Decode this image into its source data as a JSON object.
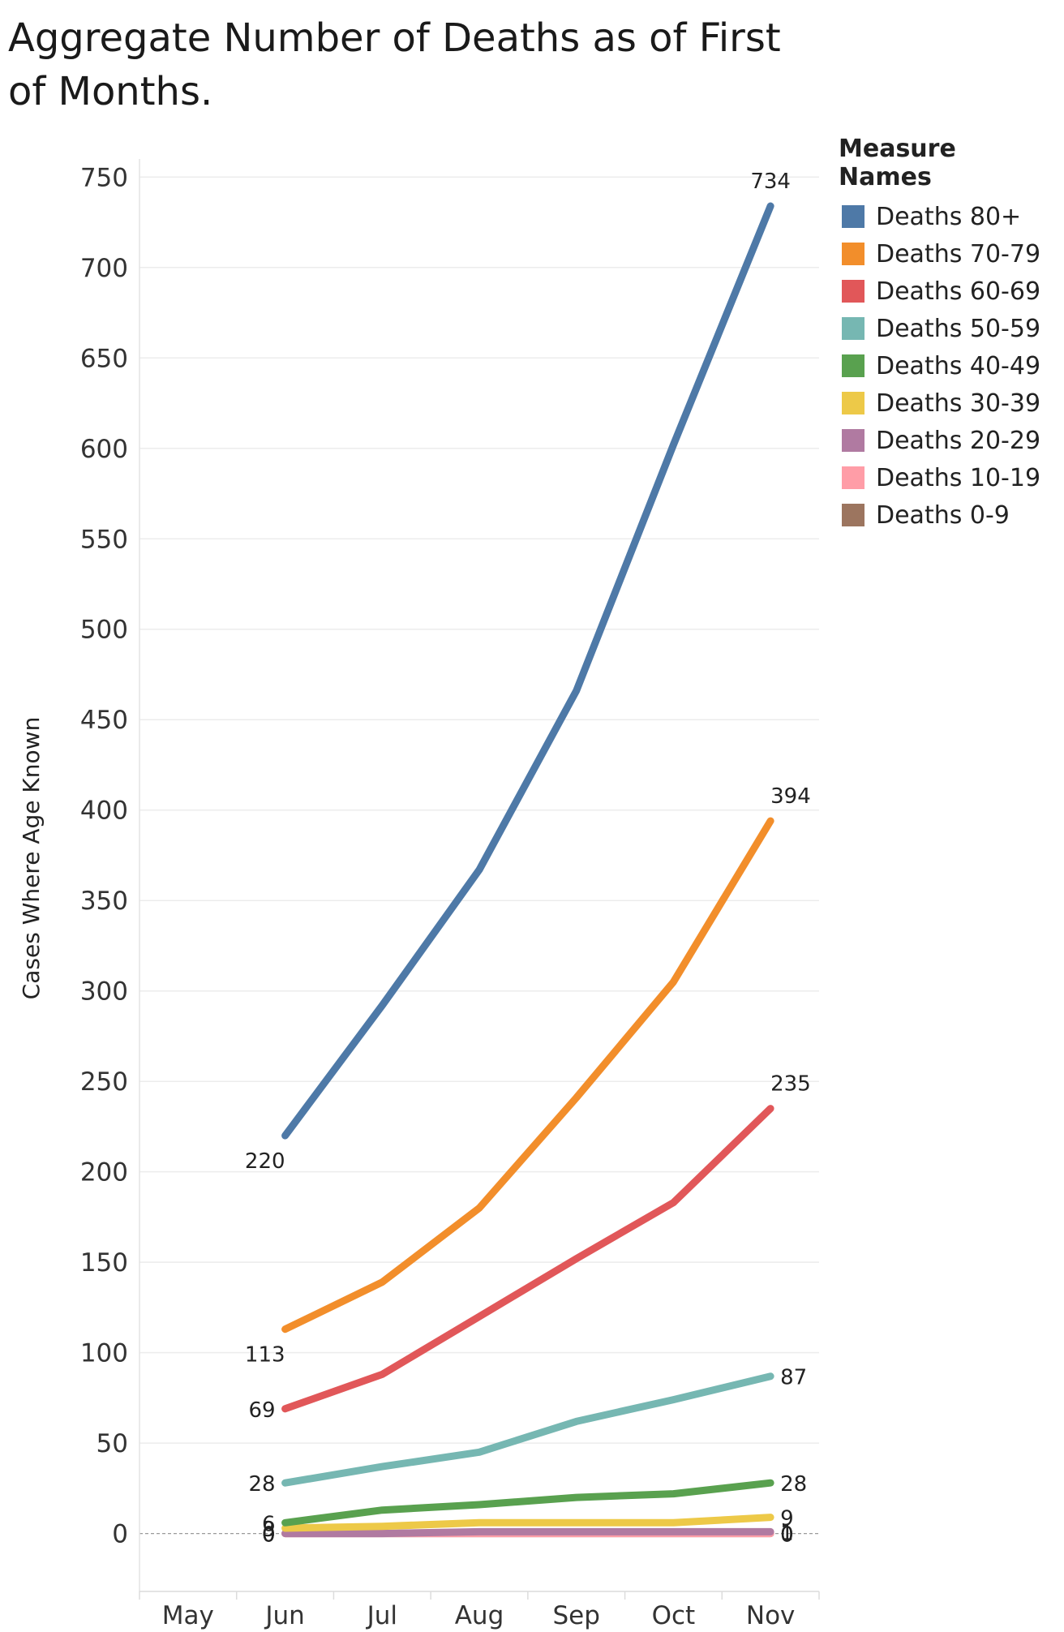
{
  "chart_data": {
    "type": "line",
    "title": "Aggregate Number of Deaths as of First of Months.",
    "ylabel": "Cases Where Age Known",
    "xlabel": "",
    "categories": [
      "May",
      "Jun",
      "Jul",
      "Aug",
      "Sep",
      "Oct",
      "Nov"
    ],
    "ylim": [
      -32,
      760
    ],
    "yticks": [
      0,
      50,
      100,
      150,
      200,
      250,
      300,
      350,
      400,
      450,
      500,
      550,
      600,
      650,
      700,
      750
    ],
    "grid": true,
    "legend_title": "Measure Names",
    "legend_position": "top-right",
    "series": [
      {
        "name": "Deaths 80+",
        "color": "#4e79a7",
        "values": [
          null,
          220,
          292,
          367,
          466,
          602,
          734
        ],
        "labels": {
          "Jun": "220",
          "Nov": "734"
        }
      },
      {
        "name": "Deaths 70-79",
        "color": "#f28e2b",
        "values": [
          null,
          113,
          139,
          180,
          241,
          305,
          394
        ],
        "labels": {
          "Jun": "113",
          "Nov": "394"
        }
      },
      {
        "name": "Deaths 60-69",
        "color": "#e15759",
        "values": [
          null,
          69,
          88,
          120,
          152,
          183,
          235
        ],
        "labels": {
          "Jun": "69",
          "Nov": "235"
        }
      },
      {
        "name": "Deaths 50-59",
        "color": "#76b7b2",
        "values": [
          null,
          28,
          37,
          45,
          62,
          74,
          87
        ],
        "labels": {
          "Jun": "28",
          "Nov": "87"
        }
      },
      {
        "name": "Deaths 40-49",
        "color": "#59a14f",
        "values": [
          null,
          6,
          13,
          16,
          20,
          22,
          28
        ],
        "labels": {
          "Jun": "6",
          "Nov": "28"
        }
      },
      {
        "name": "Deaths 30-39",
        "color": "#edc948",
        "values": [
          null,
          3,
          4,
          6,
          6,
          6,
          9
        ],
        "labels": {
          "Jun": "3",
          "Nov": "9"
        }
      },
      {
        "name": "Deaths 20-29",
        "color": "#b07aa1",
        "values": [
          null,
          0,
          0,
          1,
          1,
          1,
          1
        ],
        "labels": {
          "Jun": "0",
          "Nov": "1"
        }
      },
      {
        "name": "Deaths 10-19",
        "color": "#ff9da7",
        "values": [
          null,
          0,
          0,
          0,
          0,
          0,
          0
        ],
        "labels": {
          "Jun": "0",
          "Nov": "0"
        }
      },
      {
        "name": "Deaths 0-9",
        "color": "#9c755f",
        "values": [
          null,
          0,
          0,
          0,
          0,
          0,
          0
        ],
        "labels": {
          "Jun": "0",
          "Nov": "0"
        }
      }
    ]
  }
}
